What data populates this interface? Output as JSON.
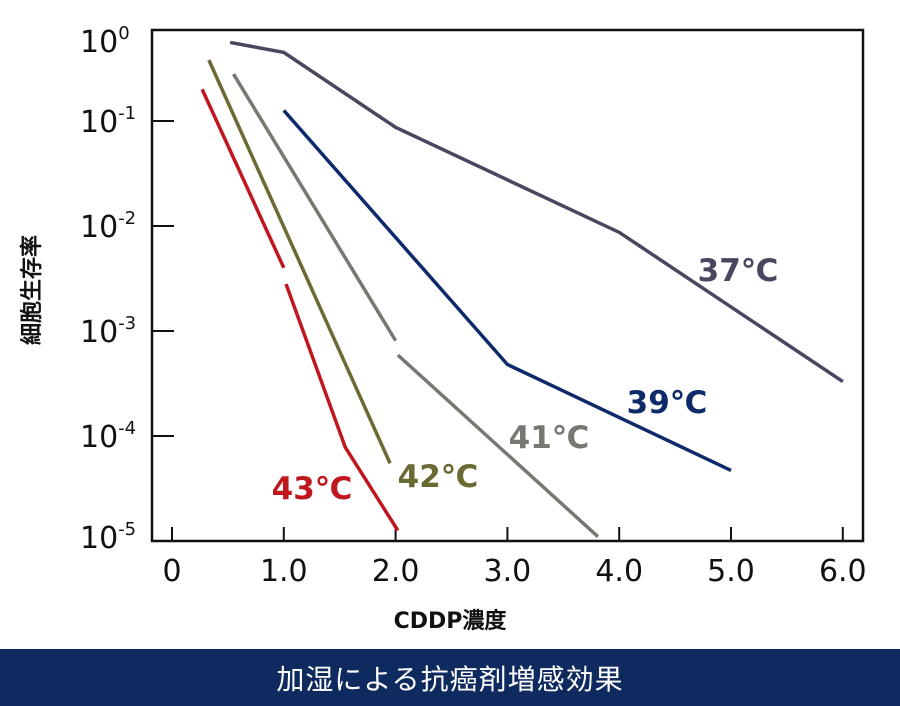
{
  "chart_data": {
    "type": "line",
    "title": "",
    "xlabel": "CDDP濃度",
    "ylabel": "細胞生存率",
    "xlim": [
      0,
      6.0
    ],
    "ylim": [
      1e-05,
      1
    ],
    "yscale": "log",
    "grid": false,
    "x_ticks": [
      "0",
      "1.0",
      "2.0",
      "3.0",
      "4.0",
      "5.0",
      "6.0"
    ],
    "x_tick_values": [
      0,
      1,
      2,
      3,
      4,
      5,
      6
    ],
    "y_ticks": [
      {
        "base": "10",
        "exp": "0",
        "value": 1
      },
      {
        "base": "10",
        "exp": "-1",
        "value": 0.1
      },
      {
        "base": "10",
        "exp": "-2",
        "value": 0.01
      },
      {
        "base": "10",
        "exp": "-3",
        "value": 0.001
      },
      {
        "base": "10",
        "exp": "-4",
        "value": 0.0001
      },
      {
        "base": "10",
        "exp": "-5",
        "value": 1e-05
      }
    ],
    "series": [
      {
        "name": "37℃",
        "color": "#4b4660",
        "segments": [
          [
            [
              0.52,
              0.56
            ],
            [
              1.0,
              0.45
            ],
            [
              2.0,
              0.087
            ],
            [
              4.0,
              0.0087
            ],
            [
              6.0,
              0.00033
            ]
          ]
        ]
      },
      {
        "name": "39℃",
        "color": "#0e2a6b",
        "segments": [
          [
            [
              1.0,
              0.126
            ],
            [
              3.0,
              0.00048
            ],
            [
              5.0,
              4.7e-05
            ]
          ]
        ]
      },
      {
        "name": "41℃",
        "color": "#777872",
        "segments": [
          [
            [
              0.55,
              0.28
            ],
            [
              2.0,
              0.00081
            ]
          ],
          [
            [
              2.02,
              0.00059
            ],
            [
              3.81,
              1.1e-05
            ]
          ]
        ]
      },
      {
        "name": "42℃",
        "color": "#6b6a35",
        "segments": [
          [
            [
              0.33,
              0.38
            ],
            [
              1.95,
              5.5e-05
            ]
          ]
        ]
      },
      {
        "name": "43℃",
        "color": "#c0171f",
        "segments": [
          [
            [
              0.27,
              0.2
            ],
            [
              1.0,
              0.004
            ]
          ],
          [
            [
              1.02,
              0.0028
            ],
            [
              1.55,
              7.8e-05
            ],
            [
              2.02,
              1.26e-05
            ]
          ]
        ]
      }
    ]
  },
  "banner": {
    "text": "加湿による抗癌剤増感効果"
  }
}
